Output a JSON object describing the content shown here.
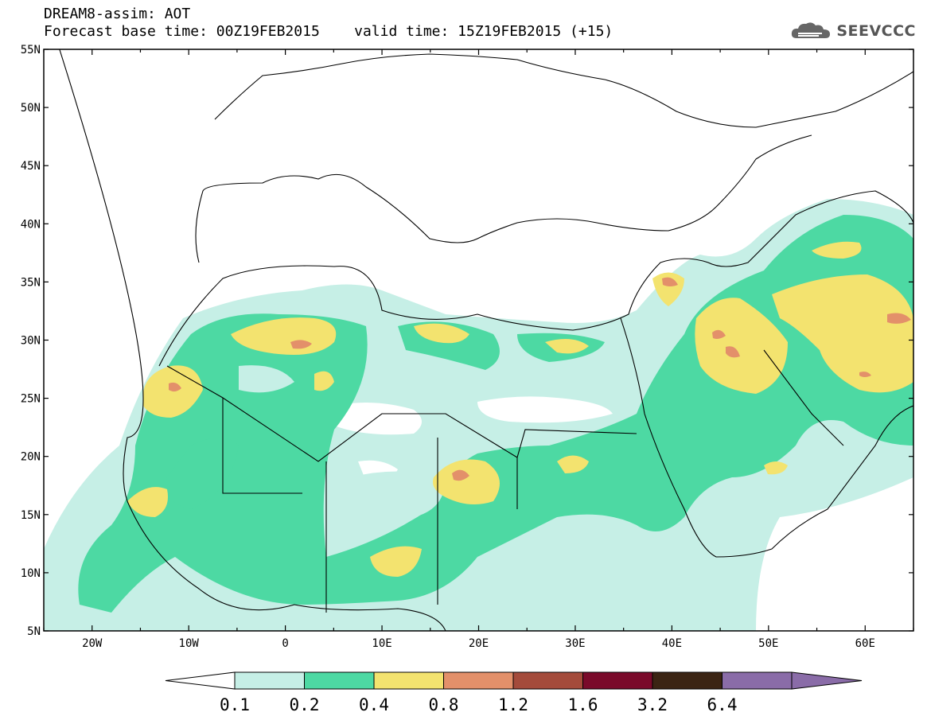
{
  "header": {
    "line1": "DREAM8-assim: AOT",
    "line2": "Forecast base time: 00Z19FEB2015    valid time: 15Z19FEB2015 (+15)",
    "logo_text": "SEEVCCC"
  },
  "map": {
    "lat_labels": [
      "55N",
      "50N",
      "45N",
      "40N",
      "35N",
      "30N",
      "25N",
      "20N",
      "15N",
      "10N",
      "5N"
    ],
    "lon_labels": [
      "20W",
      "10W",
      "0",
      "10E",
      "20E",
      "30E",
      "40E",
      "50E",
      "60E"
    ],
    "lat_range": [
      5,
      55
    ],
    "lon_range": [
      -25,
      65
    ],
    "field": "AOT"
  },
  "colorbar": {
    "labels": [
      "0.1",
      "0.2",
      "0.4",
      "0.8",
      "1.2",
      "1.6",
      "3.2",
      "6.4"
    ],
    "colors": [
      "#ffffff",
      "#c6efe6",
      "#4dd9a3",
      "#f3e36f",
      "#e3906a",
      "#a44b3b",
      "#7a0a2a",
      "#3b2413",
      "#8a6ca8"
    ]
  }
}
